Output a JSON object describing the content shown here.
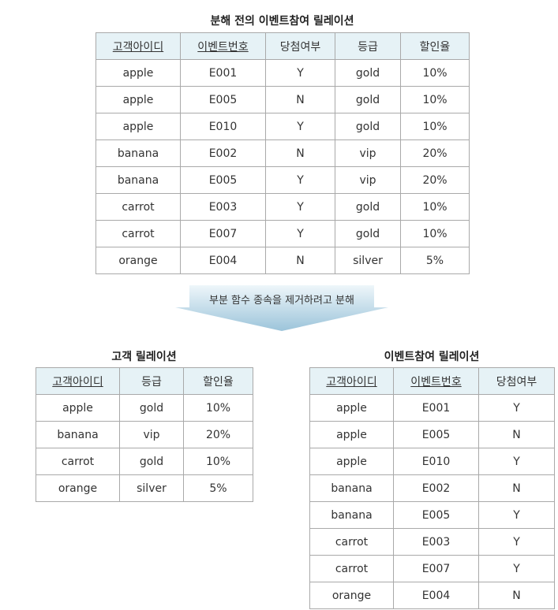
{
  "top": {
    "caption": "분해 전의 이벤트참여 릴레이션",
    "headers": [
      {
        "label": "고객아이디",
        "key": true
      },
      {
        "label": "이벤트번호",
        "key": true
      },
      {
        "label": "당첨여부",
        "key": false
      },
      {
        "label": "등급",
        "key": false
      },
      {
        "label": "할인율",
        "key": false
      }
    ],
    "rows": [
      [
        "apple",
        "E001",
        "Y",
        "gold",
        "10%"
      ],
      [
        "apple",
        "E005",
        "N",
        "gold",
        "10%"
      ],
      [
        "apple",
        "E010",
        "Y",
        "gold",
        "10%"
      ],
      [
        "banana",
        "E002",
        "N",
        "vip",
        "20%"
      ],
      [
        "banana",
        "E005",
        "Y",
        "vip",
        "20%"
      ],
      [
        "carrot",
        "E003",
        "Y",
        "gold",
        "10%"
      ],
      [
        "carrot",
        "E007",
        "Y",
        "gold",
        "10%"
      ],
      [
        "orange",
        "E004",
        "N",
        "silver",
        "5%"
      ]
    ]
  },
  "arrow": {
    "label": "부분 함수 종속을 제거하려고 분해",
    "color_top": "#eef6fa",
    "color_bottom": "#9cc4da"
  },
  "customer": {
    "caption": "고객 릴레이션",
    "headers": [
      {
        "label": "고객아이디",
        "key": true
      },
      {
        "label": "등급",
        "key": false
      },
      {
        "label": "할인율",
        "key": false
      }
    ],
    "rows": [
      [
        "apple",
        "gold",
        "10%"
      ],
      [
        "banana",
        "vip",
        "20%"
      ],
      [
        "carrot",
        "gold",
        "10%"
      ],
      [
        "orange",
        "silver",
        "5%"
      ]
    ]
  },
  "event": {
    "caption": "이벤트참여 릴레이션",
    "headers": [
      {
        "label": "고객아이디",
        "key": true
      },
      {
        "label": "이벤트번호",
        "key": true
      },
      {
        "label": "당첨여부",
        "key": false
      }
    ],
    "rows": [
      [
        "apple",
        "E001",
        "Y"
      ],
      [
        "apple",
        "E005",
        "N"
      ],
      [
        "apple",
        "E010",
        "Y"
      ],
      [
        "banana",
        "E002",
        "N"
      ],
      [
        "banana",
        "E005",
        "Y"
      ],
      [
        "carrot",
        "E003",
        "Y"
      ],
      [
        "carrot",
        "E007",
        "Y"
      ],
      [
        "orange",
        "E004",
        "N"
      ]
    ]
  },
  "colors": {
    "header_bg": "#e6f2f6",
    "border": "#a9a9a9"
  }
}
